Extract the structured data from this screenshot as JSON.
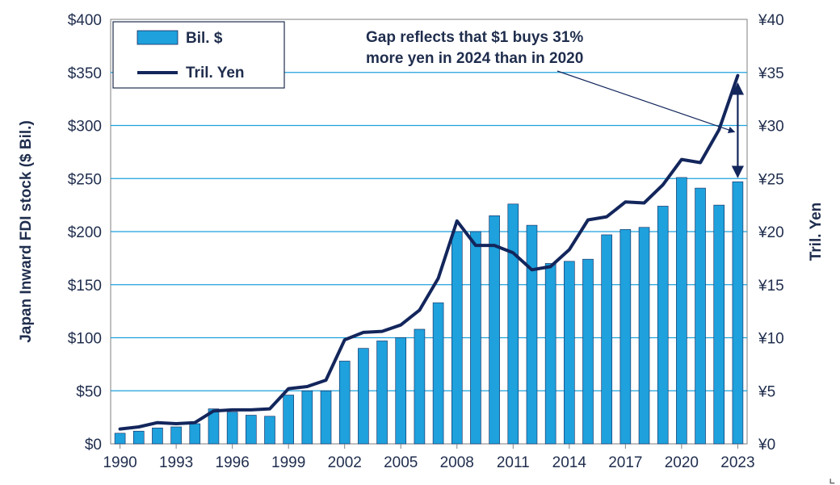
{
  "chart_data": {
    "type": "bar",
    "title": "",
    "x": [
      1990,
      1991,
      1992,
      1993,
      1994,
      1995,
      1996,
      1997,
      1998,
      1999,
      2000,
      2001,
      2002,
      2003,
      2004,
      2005,
      2006,
      2007,
      2008,
      2009,
      2010,
      2011,
      2012,
      2013,
      2014,
      2015,
      2016,
      2017,
      2018,
      2019,
      2020,
      2021,
      2022,
      2023
    ],
    "xtick_labels": [
      "1990",
      "1993",
      "1996",
      "1999",
      "2002",
      "2005",
      "2008",
      "2011",
      "2014",
      "2017",
      "2020",
      "2023"
    ],
    "ylabel": "Japan Inward FDI stock ($ Bil.)",
    "y2label": "Tril. Yen",
    "ylim": [
      0,
      400
    ],
    "y2lim": [
      0,
      40
    ],
    "ytick_labels": [
      "$0",
      "$50",
      "$100",
      "$150",
      "$200",
      "$250",
      "$300",
      "$350",
      "$400"
    ],
    "y2tick_labels": [
      "¥0",
      "¥5",
      "¥10",
      "¥15",
      "¥20",
      "¥25",
      "¥30",
      "¥35",
      "¥40"
    ],
    "grid": true,
    "legend_position": "top-left",
    "series": [
      {
        "name": "Bil. $",
        "type": "bar",
        "axis": "left",
        "color": "#1ea1dc",
        "values": [
          10,
          12,
          15,
          16,
          19,
          33,
          30,
          27,
          26,
          46,
          50,
          50,
          78,
          90,
          97,
          100,
          108,
          133,
          200,
          200,
          215,
          226,
          206,
          170,
          172,
          174,
          197,
          202,
          204,
          224,
          251,
          241,
          225,
          247
        ]
      },
      {
        "name": "Tril. Yen",
        "type": "line",
        "axis": "right",
        "color": "#13265c",
        "values": [
          1.4,
          1.6,
          2.0,
          1.9,
          2.0,
          3.1,
          3.2,
          3.2,
          3.3,
          5.2,
          5.4,
          6.0,
          9.8,
          10.5,
          10.6,
          11.2,
          12.6,
          15.6,
          21.0,
          18.7,
          18.7,
          18.0,
          16.4,
          16.7,
          18.3,
          21.1,
          21.4,
          22.8,
          22.7,
          24.4,
          26.8,
          26.5,
          29.6,
          34.7
        ]
      }
    ],
    "annotation": {
      "lines": [
        "Gap reflects that $1 buys 31%",
        "more yen in 2024 than in 2020"
      ]
    }
  }
}
